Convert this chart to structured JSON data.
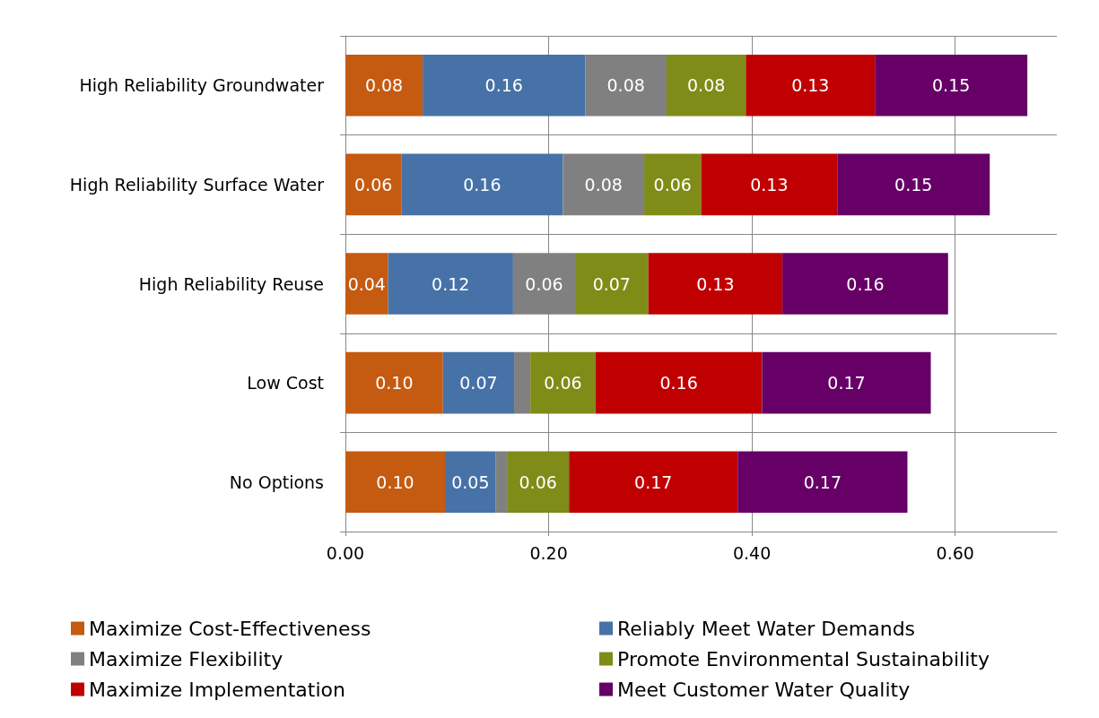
{
  "chart_data": {
    "type": "bar",
    "orientation": "horizontal",
    "stacked": true,
    "categories": [
      "High Reliability Groundwater",
      "High Reliability Surface Water",
      "High Reliability Reuse",
      "Low Cost",
      "No Options"
    ],
    "series": [
      {
        "name": "Maximize Cost-Effectiveness",
        "color": "#c55a11",
        "values": [
          0.076,
          0.055,
          0.042,
          0.096,
          0.098
        ],
        "value_labels": [
          "0.08",
          "0.06",
          "0.04",
          "0.10",
          "0.10"
        ]
      },
      {
        "name": "Reliably Meet Water Demands",
        "color": "#4672a8",
        "values": [
          0.16,
          0.159,
          0.123,
          0.07,
          0.05
        ],
        "value_labels": [
          "0.16",
          "0.16",
          "0.12",
          "0.07",
          "0.05"
        ]
      },
      {
        "name": "Maximize Flexibility",
        "color": "#808080",
        "values": [
          0.08,
          0.08,
          0.061,
          0.016,
          0.011
        ],
        "value_labels": [
          "0.08",
          "0.08",
          "0.06",
          null,
          null
        ]
      },
      {
        "name": "Promote Environmental Sustainability",
        "color": "#7f8c17",
        "values": [
          0.078,
          0.056,
          0.072,
          0.064,
          0.061
        ],
        "value_labels": [
          "0.08",
          "0.06",
          "0.07",
          "0.06",
          "0.06"
        ]
      },
      {
        "name": "Maximize Implementation",
        "color": "#c00000",
        "values": [
          0.127,
          0.134,
          0.132,
          0.164,
          0.166
        ],
        "value_labels": [
          "0.13",
          "0.13",
          "0.13",
          "0.16",
          "0.17"
        ]
      },
      {
        "name": "Meet Customer Water Quality",
        "color": "#660066",
        "values": [
          0.15,
          0.15,
          0.163,
          0.166,
          0.167
        ],
        "value_labels": [
          "0.15",
          "0.15",
          "0.16",
          "0.17",
          "0.17"
        ]
      }
    ],
    "xlim": [
      0,
      0.7
    ],
    "xticks": [
      {
        "value": 0,
        "label": "0.00"
      },
      {
        "value": 0.2,
        "label": "0.20"
      },
      {
        "value": 0.4,
        "label": "0.40"
      },
      {
        "value": 0.6,
        "label": "0.60"
      }
    ],
    "grid": true,
    "legend": "bottom"
  }
}
